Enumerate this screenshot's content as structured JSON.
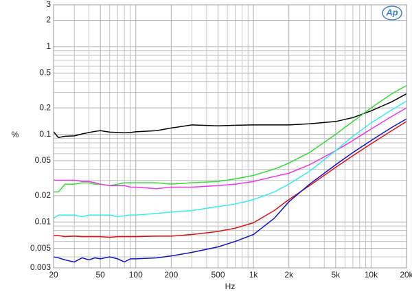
{
  "chart_data": {
    "type": "line",
    "logo": "Ap",
    "x_label": "Hz",
    "y_label": "%",
    "log_x": true,
    "log_y": true,
    "grid": true,
    "xlim": [
      20,
      20000
    ],
    "ylim": [
      0.003,
      3
    ],
    "xticks": [
      20,
      50,
      100,
      200,
      500,
      {
        "value": 1000,
        "label": "1k"
      },
      {
        "value": 2000,
        "label": "2k"
      },
      {
        "value": 5000,
        "label": "5k"
      },
      {
        "value": 10000,
        "label": "10k"
      },
      {
        "value": 20000,
        "label": "20k"
      }
    ],
    "yticks": [
      0.003,
      0.005,
      0.01,
      0.02,
      0.05,
      0.1,
      0.2,
      0.5,
      1,
      2,
      3
    ],
    "x_minor_ticks": [
      30,
      40,
      60,
      70,
      80,
      90,
      300,
      400,
      600,
      700,
      800,
      900,
      3000,
      4000,
      6000,
      7000,
      8000,
      9000
    ],
    "y_minor_ticks": [
      0.004,
      0.006,
      0.007,
      0.008,
      0.009,
      0.03,
      0.04,
      0.06,
      0.07,
      0.08,
      0.09,
      0.3,
      0.4,
      0.6,
      0.7,
      0.8,
      0.9
    ],
    "x": [
      20,
      22,
      25,
      30,
      35,
      40,
      45,
      50,
      60,
      70,
      80,
      90,
      100,
      150,
      200,
      300,
      500,
      700,
      1000,
      1500,
      2000,
      3000,
      5000,
      7000,
      10000,
      15000,
      20000
    ],
    "series": [
      {
        "color": "#000000",
        "values": [
          0.107,
          0.092,
          0.095,
          0.096,
          0.101,
          0.105,
          0.108,
          0.11,
          0.106,
          0.105,
          0.104,
          0.105,
          0.107,
          0.11,
          0.118,
          0.128,
          0.125,
          0.127,
          0.128,
          0.128,
          0.128,
          0.132,
          0.14,
          0.155,
          0.185,
          0.235,
          0.29
        ]
      },
      {
        "color": "#33dd33",
        "values": [
          0.022,
          0.022,
          0.027,
          0.027,
          0.028,
          0.028,
          0.027,
          0.027,
          0.026,
          0.027,
          0.028,
          0.028,
          0.028,
          0.028,
          0.027,
          0.028,
          0.029,
          0.031,
          0.034,
          0.04,
          0.047,
          0.062,
          0.1,
          0.14,
          0.2,
          0.29,
          0.36
        ]
      },
      {
        "color": "#ee33ee",
        "values": [
          0.03,
          0.03,
          0.03,
          0.03,
          0.029,
          0.029,
          0.028,
          0.027,
          0.026,
          0.026,
          0.026,
          0.025,
          0.025,
          0.024,
          0.025,
          0.025,
          0.026,
          0.027,
          0.029,
          0.033,
          0.036,
          0.045,
          0.065,
          0.085,
          0.115,
          0.16,
          0.2
        ]
      },
      {
        "color": "#33eeee",
        "values": [
          0.011,
          0.012,
          0.012,
          0.012,
          0.0115,
          0.012,
          0.012,
          0.012,
          0.012,
          0.0115,
          0.0118,
          0.012,
          0.012,
          0.0125,
          0.013,
          0.0135,
          0.015,
          0.016,
          0.018,
          0.022,
          0.027,
          0.038,
          0.065,
          0.095,
          0.135,
          0.19,
          0.24
        ]
      },
      {
        "color": "#dd1111",
        "values": [
          0.007,
          0.007,
          0.0068,
          0.0069,
          0.0068,
          0.0068,
          0.0068,
          0.0068,
          0.0067,
          0.0068,
          0.0068,
          0.0068,
          0.0068,
          0.0069,
          0.0069,
          0.0072,
          0.0078,
          0.0085,
          0.0098,
          0.0135,
          0.018,
          0.026,
          0.042,
          0.057,
          0.078,
          0.11,
          0.14
        ]
      },
      {
        "color": "#1111cc",
        "values": [
          0.004,
          0.0039,
          0.0037,
          0.0035,
          0.0039,
          0.0037,
          0.0039,
          0.0038,
          0.004,
          0.0038,
          0.0035,
          0.0038,
          0.0038,
          0.0039,
          0.0041,
          0.0045,
          0.0052,
          0.006,
          0.0072,
          0.011,
          0.017,
          0.027,
          0.045,
          0.062,
          0.085,
          0.12,
          0.15
        ]
      }
    ]
  }
}
